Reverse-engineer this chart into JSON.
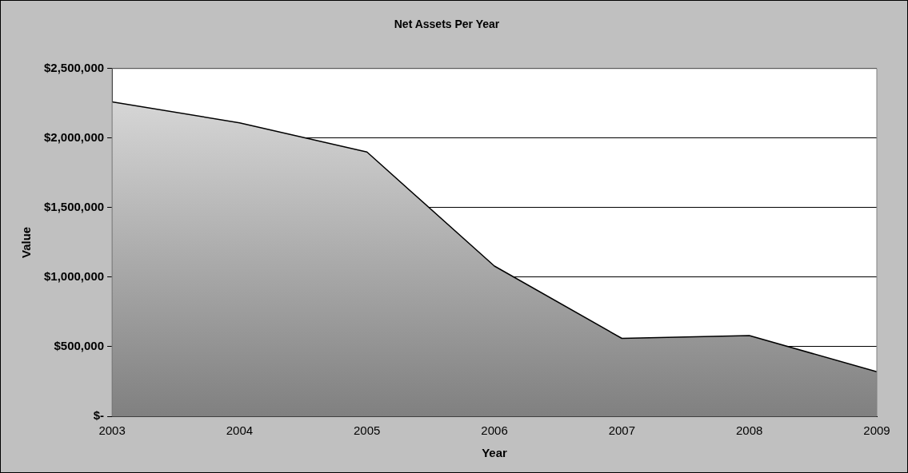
{
  "chart_data": {
    "type": "area",
    "title": "Net Assets Per Year",
    "xlabel": "Year",
    "ylabel": "Value",
    "categories": [
      "2003",
      "2004",
      "2005",
      "2006",
      "2007",
      "2008",
      "2009"
    ],
    "series": [
      {
        "color": "#808080",
        "values": [
          2260000,
          2110000,
          1900000,
          1080000,
          560000,
          580000,
          320000
        ]
      }
    ],
    "ylim": [
      0,
      2500000
    ],
    "yticks": [
      {
        "value": 0,
        "label": "$-"
      },
      {
        "value": 500000,
        "label": "$500,000"
      },
      {
        "value": 1000000,
        "label": "$1,000,000"
      },
      {
        "value": 1500000,
        "label": "$1,500,000"
      },
      {
        "value": 2000000,
        "label": "$2,000,000"
      },
      {
        "value": 2500000,
        "label": "$2,500,000"
      }
    ],
    "grid": "y",
    "legend": false
  }
}
